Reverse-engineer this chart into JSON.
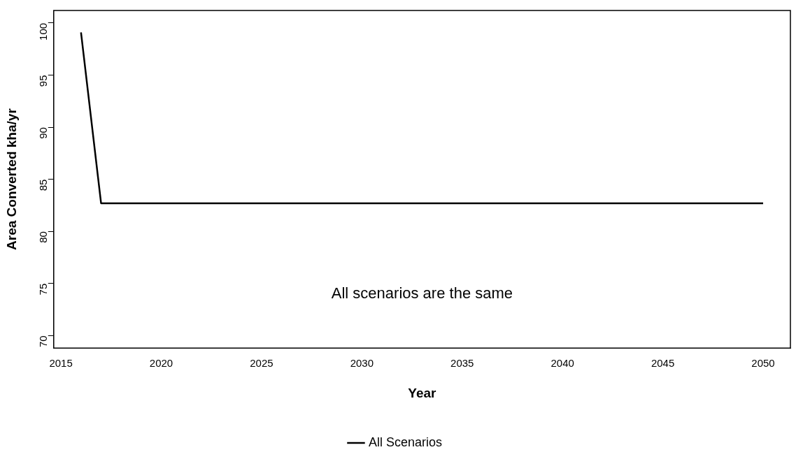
{
  "chart_data": {
    "type": "line",
    "xlabel": "Year",
    "ylabel": "Area Converted kha/yr",
    "annotations": [
      "All scenarios are the same"
    ],
    "series": [
      {
        "name": "All Scenarios",
        "color": "#000000",
        "x": [
          2016,
          2017,
          2050
        ],
        "values": [
          99.1,
          82.7,
          82.7
        ]
      }
    ],
    "xlim": [
      2014.64,
      2051.36
    ],
    "xticks": [
      2015,
      2020,
      2025,
      2030,
      2035,
      2040,
      2045,
      2050
    ],
    "ylim": [
      68.8,
      101.2
    ],
    "yticks": [
      70,
      75,
      80,
      85,
      90,
      95,
      100
    ],
    "grid": false,
    "legend": "bottom",
    "marker": "none",
    "line_style": "solid"
  }
}
